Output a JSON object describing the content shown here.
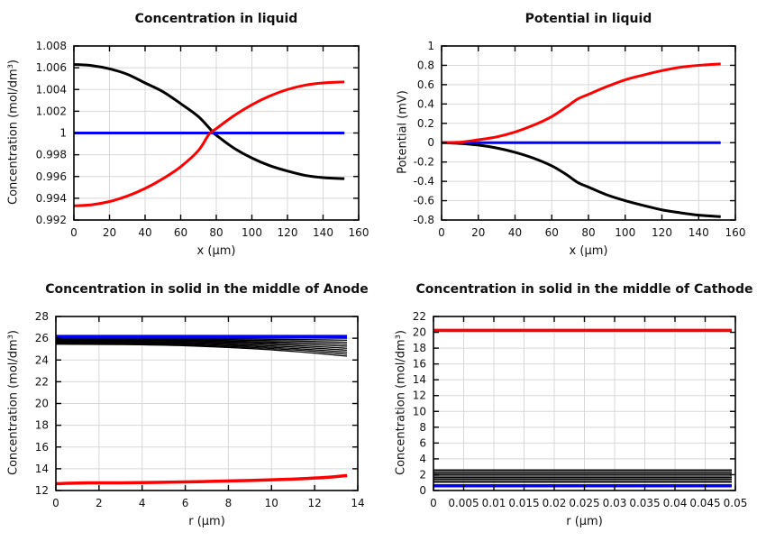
{
  "palette": {
    "background": "#ffffff",
    "axis": "#000000",
    "grid": "#d8d8d8",
    "black_series": "#000000",
    "red_series": "#ff0000",
    "blue_series": "#0000ff"
  },
  "chart_data": [
    {
      "id": "concentration-in-liquid",
      "type": "line",
      "title": "Concentration in liquid",
      "xlabel": "x (μm)",
      "ylabel": "Concentration (mol/dm³)",
      "xlim": [
        0,
        160
      ],
      "ylim": [
        0.992,
        1.008
      ],
      "grid": true,
      "legend": "none",
      "xticks": {
        "values": [
          0,
          20,
          40,
          60,
          80,
          100,
          120,
          140,
          160
        ],
        "labels": [
          "0",
          "20",
          "40",
          "60",
          "80",
          "100",
          "120",
          "140",
          "160"
        ]
      },
      "yticks": {
        "values": [
          0.992,
          0.994,
          0.996,
          0.998,
          1,
          1.002,
          1.004,
          1.006,
          1.008
        ],
        "labels": [
          "0.992",
          "0.994",
          "0.996",
          "0.998",
          "1",
          "1.002",
          "1.004",
          "1.006",
          "1.008"
        ]
      },
      "series": [
        {
          "name": "series-black",
          "color": "#000000",
          "width": 3,
          "x": [
            0,
            10,
            20,
            30,
            40,
            50,
            60,
            70,
            78,
            80,
            90,
            100,
            110,
            120,
            130,
            140,
            152
          ],
          "y": [
            1.0063,
            1.0062,
            1.0059,
            1.0054,
            1.0046,
            1.0038,
            1.0027,
            1.0015,
            1.0001,
            0.9998,
            0.9986,
            0.9977,
            0.997,
            0.9965,
            0.9961,
            0.9959,
            0.9958
          ]
        },
        {
          "name": "series-blue",
          "color": "#0000ff",
          "width": 3,
          "x": [
            0,
            152
          ],
          "y": [
            1,
            1
          ]
        },
        {
          "name": "series-red",
          "color": "#ff0000",
          "width": 3,
          "x": [
            0,
            10,
            20,
            30,
            40,
            50,
            60,
            70,
            76,
            80,
            90,
            100,
            110,
            120,
            130,
            140,
            152
          ],
          "y": [
            0.9933,
            0.9934,
            0.9937,
            0.9942,
            0.9949,
            0.9958,
            0.9969,
            0.9984,
            0.9999,
            1.0004,
            1.0016,
            1.0026,
            1.0034,
            1.004,
            1.0044,
            1.0046,
            1.0047
          ]
        }
      ]
    },
    {
      "id": "potential-in-liquid",
      "type": "line",
      "title": "Potential in liquid",
      "xlabel": "x (μm)",
      "ylabel": "Potential (mV)",
      "xlim": [
        0,
        160
      ],
      "ylim": [
        -0.8,
        1
      ],
      "grid": true,
      "legend": "none",
      "xticks": {
        "values": [
          0,
          20,
          40,
          60,
          80,
          100,
          120,
          140,
          160
        ],
        "labels": [
          "0",
          "20",
          "40",
          "60",
          "80",
          "100",
          "120",
          "140",
          "160"
        ]
      },
      "yticks": {
        "values": [
          -0.8,
          -0.6,
          -0.4,
          -0.2,
          0,
          0.2,
          0.4,
          0.6,
          0.8,
          1
        ],
        "labels": [
          "-0.8",
          "-0.6",
          "-0.4",
          "-0.2",
          "0",
          "0.2",
          "0.4",
          "0.6",
          "0.8",
          "1"
        ]
      },
      "series": [
        {
          "name": "series-black",
          "color": "#000000",
          "width": 3,
          "x": [
            0,
            10,
            20,
            30,
            40,
            50,
            60,
            68,
            74,
            80,
            90,
            100,
            110,
            120,
            130,
            140,
            152
          ],
          "y": [
            0,
            -0.008,
            -0.025,
            -0.055,
            -0.1,
            -0.16,
            -0.24,
            -0.33,
            -0.41,
            -0.46,
            -0.54,
            -0.6,
            -0.65,
            -0.695,
            -0.725,
            -0.75,
            -0.765
          ]
        },
        {
          "name": "series-blue",
          "color": "#0000ff",
          "width": 3,
          "x": [
            0,
            152
          ],
          "y": [
            0,
            0
          ]
        },
        {
          "name": "series-red",
          "color": "#ff0000",
          "width": 3,
          "x": [
            0,
            10,
            20,
            30,
            40,
            50,
            60,
            68,
            74,
            80,
            90,
            100,
            110,
            120,
            130,
            140,
            152
          ],
          "y": [
            0,
            0.005,
            0.03,
            0.06,
            0.11,
            0.18,
            0.27,
            0.37,
            0.45,
            0.5,
            0.58,
            0.65,
            0.7,
            0.745,
            0.78,
            0.8,
            0.815
          ]
        }
      ]
    },
    {
      "id": "concentration-solid-anode",
      "type": "line",
      "title": "Concentration in solid in the middle of Anode",
      "xlabel": "r (μm)",
      "ylabel": "Concentration (mol/dm³)",
      "xlim": [
        0,
        14
      ],
      "ylim": [
        12,
        28
      ],
      "grid": true,
      "legend": "none",
      "xticks": {
        "values": [
          0,
          2,
          4,
          6,
          8,
          10,
          12,
          14
        ],
        "labels": [
          "0",
          "2",
          "4",
          "6",
          "8",
          "10",
          "12",
          "14"
        ]
      },
      "yticks": {
        "values": [
          12,
          14,
          16,
          18,
          20,
          22,
          24,
          26,
          28
        ],
        "labels": [
          "12",
          "14",
          "16",
          "18",
          "20",
          "22",
          "24",
          "26",
          "28"
        ]
      },
      "series": [
        {
          "name": "series-black-t1",
          "color": "#000000",
          "width": 1.3,
          "x": [
            0,
            3,
            6,
            9,
            11,
            12.5,
            13.5
          ],
          "y": [
            25.45,
            25.42,
            25.31,
            25.05,
            24.79,
            24.54,
            24.35
          ]
        },
        {
          "name": "series-black-t2",
          "color": "#000000",
          "width": 1.3,
          "x": [
            0,
            3,
            6,
            9,
            11,
            12.5,
            13.5
          ],
          "y": [
            25.52,
            25.49,
            25.39,
            25.16,
            24.93,
            24.71,
            24.53
          ]
        },
        {
          "name": "series-black-t3",
          "color": "#000000",
          "width": 1.3,
          "x": [
            0,
            3,
            6,
            9,
            11,
            12.5,
            13.5
          ],
          "y": [
            25.58,
            25.56,
            25.47,
            25.27,
            25.06,
            24.87,
            24.72
          ]
        },
        {
          "name": "series-black-t4",
          "color": "#000000",
          "width": 1.3,
          "x": [
            0,
            3,
            6,
            9,
            11,
            12.5,
            13.5
          ],
          "y": [
            25.65,
            25.63,
            25.55,
            25.38,
            25.2,
            25.03,
            24.9
          ]
        },
        {
          "name": "series-black-t5",
          "color": "#000000",
          "width": 1.3,
          "x": [
            0,
            3,
            6,
            9,
            11,
            12.5,
            13.5
          ],
          "y": [
            25.72,
            25.7,
            25.63,
            25.49,
            25.34,
            25.19,
            25.08
          ]
        },
        {
          "name": "series-black-t6",
          "color": "#000000",
          "width": 1.3,
          "x": [
            0,
            3,
            6,
            9,
            11,
            12.5,
            13.5
          ],
          "y": [
            25.78,
            25.77,
            25.72,
            25.6,
            25.47,
            25.36,
            25.27
          ]
        },
        {
          "name": "series-black-t7",
          "color": "#000000",
          "width": 1.3,
          "x": [
            0,
            3,
            6,
            9,
            11,
            12.5,
            13.5
          ],
          "y": [
            25.85,
            25.84,
            25.8,
            25.7,
            25.61,
            25.52,
            25.45
          ]
        },
        {
          "name": "series-black-t8",
          "color": "#000000",
          "width": 1.3,
          "x": [
            0,
            3,
            6,
            9,
            11,
            12.5,
            13.5
          ],
          "y": [
            25.92,
            25.91,
            25.88,
            25.81,
            25.75,
            25.68,
            25.63
          ]
        },
        {
          "name": "series-black-t9",
          "color": "#000000",
          "width": 1.3,
          "x": [
            0,
            3,
            6,
            9,
            11,
            12.5,
            13.5
          ],
          "y": [
            25.98,
            25.98,
            25.96,
            25.92,
            25.88,
            25.85,
            25.82
          ]
        },
        {
          "name": "series-black-t10",
          "color": "#000000",
          "width": 1.3,
          "x": [
            0,
            3,
            6,
            9,
            11,
            12.5,
            13.5
          ],
          "y": [
            26.05,
            26.05,
            26.04,
            26.03,
            26.02,
            26.01,
            26.0
          ]
        },
        {
          "name": "series-blue",
          "color": "#0000ff",
          "width": 3.5,
          "x": [
            0,
            13.5
          ],
          "y": [
            26.17,
            26.17
          ]
        },
        {
          "name": "series-red",
          "color": "#ff0000",
          "width": 3.5,
          "x": [
            0,
            1.5,
            3,
            5,
            7,
            9,
            11,
            12.5,
            13.5
          ],
          "y": [
            12.63,
            12.7,
            12.71,
            12.76,
            12.83,
            12.92,
            13.05,
            13.2,
            13.38
          ]
        }
      ]
    },
    {
      "id": "concentration-solid-cathode",
      "type": "line",
      "title": "Concentration in solid in the middle of Cathode",
      "xlabel": "r (μm)",
      "ylabel": "Concentration (mol/dm³)",
      "xlim": [
        0,
        0.05
      ],
      "ylim": [
        0,
        22
      ],
      "grid": true,
      "legend": "none",
      "xticks": {
        "values": [
          0,
          0.005,
          0.01,
          0.015,
          0.02,
          0.025,
          0.03,
          0.035,
          0.04,
          0.045,
          0.05
        ],
        "labels": [
          "0",
          "0.005",
          "0.01",
          "0.015",
          "0.02",
          "0.025",
          "0.03",
          "0.035",
          "0.04",
          "0.045",
          "0.05"
        ]
      },
      "yticks": {
        "values": [
          0,
          2,
          4,
          6,
          8,
          10,
          12,
          14,
          16,
          18,
          20,
          22
        ],
        "labels": [
          "0",
          "2",
          "4",
          "6",
          "8",
          "10",
          "12",
          "14",
          "16",
          "18",
          "20",
          "22"
        ]
      },
      "series": [
        {
          "name": "series-black-t1",
          "color": "#000000",
          "width": 1.3,
          "x": [
            0,
            0.0494
          ],
          "y": [
            1.05,
            1.05
          ]
        },
        {
          "name": "series-black-t2",
          "color": "#000000",
          "width": 1.3,
          "x": [
            0,
            0.0494
          ],
          "y": [
            1.24,
            1.24
          ]
        },
        {
          "name": "series-black-t3",
          "color": "#000000",
          "width": 1.3,
          "x": [
            0,
            0.0494
          ],
          "y": [
            1.44,
            1.44
          ]
        },
        {
          "name": "series-black-t4",
          "color": "#000000",
          "width": 1.3,
          "x": [
            0,
            0.0494
          ],
          "y": [
            1.63,
            1.63
          ]
        },
        {
          "name": "series-black-t5",
          "color": "#000000",
          "width": 1.3,
          "x": [
            0,
            0.0494
          ],
          "y": [
            1.82,
            1.82
          ]
        },
        {
          "name": "series-black-t6",
          "color": "#000000",
          "width": 1.3,
          "x": [
            0,
            0.0494
          ],
          "y": [
            2.02,
            2.02
          ]
        },
        {
          "name": "series-black-t7",
          "color": "#000000",
          "width": 1.3,
          "x": [
            0,
            0.0494
          ],
          "y": [
            2.21,
            2.21
          ]
        },
        {
          "name": "series-black-t8",
          "color": "#000000",
          "width": 1.3,
          "x": [
            0,
            0.0494
          ],
          "y": [
            2.41,
            2.41
          ]
        },
        {
          "name": "series-black-t9",
          "color": "#000000",
          "width": 1.3,
          "x": [
            0,
            0.0494
          ],
          "y": [
            2.6,
            2.6
          ]
        },
        {
          "name": "series-blue",
          "color": "#0000ff",
          "width": 3.5,
          "x": [
            0,
            0.0494
          ],
          "y": [
            0.6,
            0.6
          ]
        },
        {
          "name": "series-red",
          "color": "#ff0000",
          "width": 3.5,
          "x": [
            0,
            0.0494
          ],
          "y": [
            20.25,
            20.25
          ]
        }
      ]
    }
  ]
}
